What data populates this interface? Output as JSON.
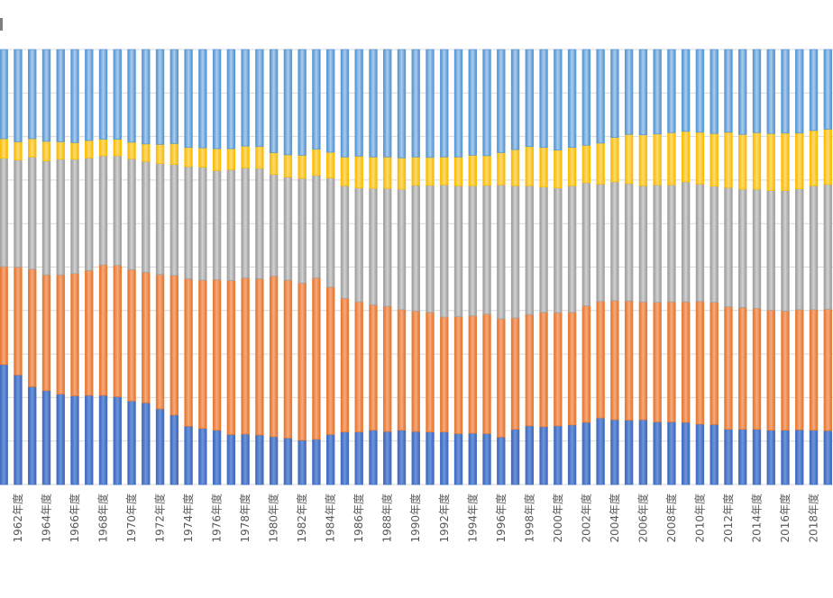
{
  "chart_data": {
    "type": "bar",
    "stacked": true,
    "normalized": true,
    "title": "",
    "xlabel": "",
    "ylabel": "",
    "ylim": [
      0,
      1
    ],
    "grid": true,
    "categories": [
      "1961年度",
      "1962年度",
      "1963年度",
      "1964年度",
      "1965年度",
      "1966年度",
      "1967年度",
      "1968年度",
      "1969年度",
      "1970年度",
      "1971年度",
      "1972年度",
      "1973年度",
      "1974年度",
      "1975年度",
      "1976年度",
      "1977年度",
      "1978年度",
      "1979年度",
      "1980年度",
      "1981年度",
      "1982年度",
      "1983年度",
      "1984年度",
      "1985年度",
      "1986年度",
      "1987年度",
      "1988年度",
      "1989年度",
      "1990年度",
      "1991年度",
      "1992年度",
      "1993年度",
      "1994年度",
      "1995年度",
      "1996年度",
      "1997年度",
      "1998年度",
      "1999年度",
      "2000年度",
      "2001年度",
      "2002年度",
      "2003年度",
      "2004年度",
      "2005年度",
      "2006年度",
      "2007年度",
      "2008年度",
      "2009年度",
      "2010年度",
      "2011年度",
      "2012年度",
      "2013年度",
      "2014年度",
      "2015年度",
      "2016年度",
      "2017年度",
      "2018年度",
      "2019年度"
    ],
    "series": [
      {
        "color": "#4472c4",
        "values": [
          0.276,
          0.252,
          0.225,
          0.216,
          0.208,
          0.204,
          0.205,
          0.205,
          0.202,
          0.192,
          0.188,
          0.174,
          0.16,
          0.134,
          0.129,
          0.125,
          0.115,
          0.116,
          0.114,
          0.11,
          0.107,
          0.102,
          0.104,
          0.115,
          0.121,
          0.121,
          0.125,
          0.122,
          0.125,
          0.122,
          0.121,
          0.121,
          0.117,
          0.118,
          0.117,
          0.109,
          0.127,
          0.135,
          0.133,
          0.135,
          0.137,
          0.143,
          0.153,
          0.149,
          0.148,
          0.149,
          0.144,
          0.144,
          0.143,
          0.139,
          0.138,
          0.127,
          0.127,
          0.127,
          0.125,
          0.125,
          0.126,
          0.125,
          0.124
        ]
      },
      {
        "color": "#ed7d31",
        "values": [
          0.225,
          0.248,
          0.27,
          0.266,
          0.274,
          0.281,
          0.287,
          0.3,
          0.302,
          0.302,
          0.3,
          0.309,
          0.321,
          0.339,
          0.341,
          0.346,
          0.354,
          0.359,
          0.359,
          0.369,
          0.363,
          0.361,
          0.371,
          0.339,
          0.307,
          0.299,
          0.288,
          0.288,
          0.277,
          0.277,
          0.275,
          0.264,
          0.269,
          0.27,
          0.275,
          0.272,
          0.256,
          0.256,
          0.263,
          0.26,
          0.259,
          0.268,
          0.268,
          0.274,
          0.274,
          0.271,
          0.275,
          0.276,
          0.277,
          0.282,
          0.281,
          0.282,
          0.28,
          0.278,
          0.276,
          0.274,
          0.276,
          0.277,
          0.279
        ]
      },
      {
        "color": "#a5a5a5",
        "values": [
          0.249,
          0.246,
          0.258,
          0.262,
          0.266,
          0.263,
          0.259,
          0.251,
          0.252,
          0.255,
          0.255,
          0.255,
          0.255,
          0.258,
          0.26,
          0.251,
          0.255,
          0.253,
          0.254,
          0.234,
          0.237,
          0.241,
          0.236,
          0.251,
          0.259,
          0.262,
          0.268,
          0.271,
          0.277,
          0.289,
          0.292,
          0.304,
          0.301,
          0.299,
          0.296,
          0.308,
          0.304,
          0.296,
          0.288,
          0.287,
          0.291,
          0.283,
          0.27,
          0.273,
          0.27,
          0.267,
          0.27,
          0.269,
          0.276,
          0.27,
          0.267,
          0.274,
          0.272,
          0.274,
          0.275,
          0.277,
          0.278,
          0.285,
          0.287
        ]
      },
      {
        "color": "#ffc000",
        "values": [
          0.045,
          0.042,
          0.042,
          0.045,
          0.04,
          0.038,
          0.04,
          0.038,
          0.038,
          0.038,
          0.04,
          0.044,
          0.048,
          0.044,
          0.044,
          0.05,
          0.048,
          0.05,
          0.05,
          0.05,
          0.051,
          0.053,
          0.06,
          0.059,
          0.066,
          0.073,
          0.072,
          0.072,
          0.072,
          0.065,
          0.064,
          0.064,
          0.066,
          0.07,
          0.068,
          0.074,
          0.083,
          0.09,
          0.091,
          0.087,
          0.088,
          0.086,
          0.094,
          0.102,
          0.113,
          0.117,
          0.117,
          0.12,
          0.116,
          0.119,
          0.121,
          0.127,
          0.126,
          0.13,
          0.131,
          0.132,
          0.128,
          0.127,
          0.127
        ]
      },
      {
        "color": "#5b9bd5",
        "values": [
          0.205,
          0.212,
          0.205,
          0.211,
          0.212,
          0.214,
          0.209,
          0.206,
          0.206,
          0.213,
          0.217,
          0.218,
          0.216,
          0.225,
          0.226,
          0.228,
          0.228,
          0.222,
          0.223,
          0.237,
          0.242,
          0.243,
          0.229,
          0.236,
          0.247,
          0.245,
          0.247,
          0.247,
          0.249,
          0.247,
          0.248,
          0.247,
          0.247,
          0.243,
          0.244,
          0.237,
          0.23,
          0.223,
          0.225,
          0.231,
          0.225,
          0.22,
          0.215,
          0.202,
          0.195,
          0.196,
          0.194,
          0.191,
          0.188,
          0.19,
          0.193,
          0.19,
          0.195,
          0.191,
          0.193,
          0.192,
          0.192,
          0.186,
          0.183
        ]
      }
    ],
    "xlabels_visible": [
      "1962年度",
      "1964年度",
      "1966年度",
      "1968年度",
      "1970年度",
      "1972年度",
      "1974年度",
      "1976年度",
      "1978年度",
      "1980年度",
      "1982年度",
      "1984年度",
      "1986年度",
      "1988年度",
      "1990年度",
      "1992年度",
      "1994年度",
      "1996年度",
      "1998年度",
      "2000年度",
      "2002年度",
      "2004年度",
      "2006年度",
      "2008年度",
      "2010年度",
      "2012年度",
      "2014年度",
      "2016年度",
      "2018年度"
    ]
  }
}
